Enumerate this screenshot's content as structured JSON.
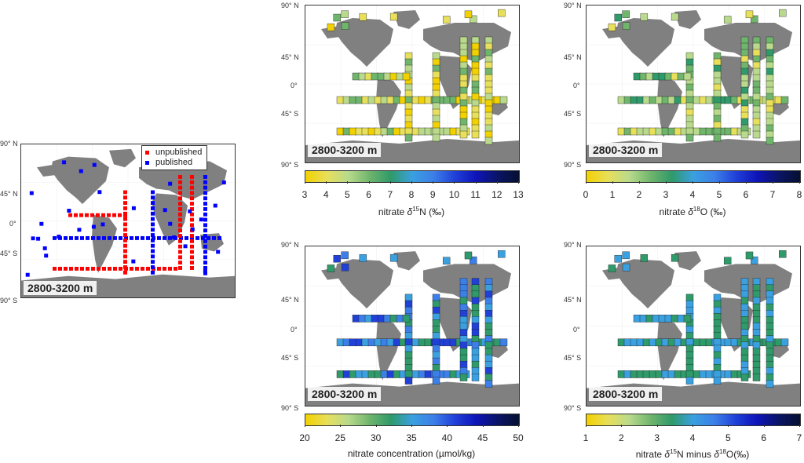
{
  "depth_range": "2800-3200 m",
  "lat_labels": {
    "n90": "90° N",
    "n45": "45° N",
    "eq": "0°",
    "s45": "45° S",
    "s90": "90° S"
  },
  "legend": {
    "unpublished": {
      "label": "unpublished",
      "color": "#ff0000"
    },
    "published": {
      "label": "published",
      "color": "#0000ff"
    }
  },
  "panels": {
    "d15n": {
      "ticks": [
        "3",
        "4",
        "5",
        "6",
        "7",
        "8",
        "9",
        "10",
        "11",
        "12",
        "13"
      ],
      "label_prefix": "nitrate ",
      "label_sup": "15",
      "label_suffix": "N (‰)"
    },
    "d18o": {
      "ticks": [
        "0",
        "1",
        "2",
        "3",
        "4",
        "5",
        "6",
        "7",
        "8"
      ],
      "label_prefix": "nitrate ",
      "label_sup": "18",
      "label_suffix": "O (‰)"
    },
    "conc": {
      "ticks": [
        "20",
        "25",
        "30",
        "35",
        "40",
        "45",
        "50"
      ],
      "label_text": "nitrate concentration (µmol/kg)"
    },
    "diff": {
      "ticks": [
        "1",
        "2",
        "3",
        "4",
        "5",
        "6",
        "7"
      ],
      "label_prefix": "nitrate ",
      "label_sup": "15",
      "label_mid": "N minus ",
      "label_sup2": "18",
      "label_suffix": "O(‰)"
    }
  },
  "colors": {
    "land": "#808080",
    "ocean": "#ffffff",
    "colormap": [
      "#f2d100",
      "#e8df5a",
      "#b9da8c",
      "#6fb56c",
      "#2f9a6a",
      "#3aa0e0",
      "#3c7fe8",
      "#2040d8",
      "#0e14b8",
      "#0a1466",
      "#051030"
    ]
  }
}
